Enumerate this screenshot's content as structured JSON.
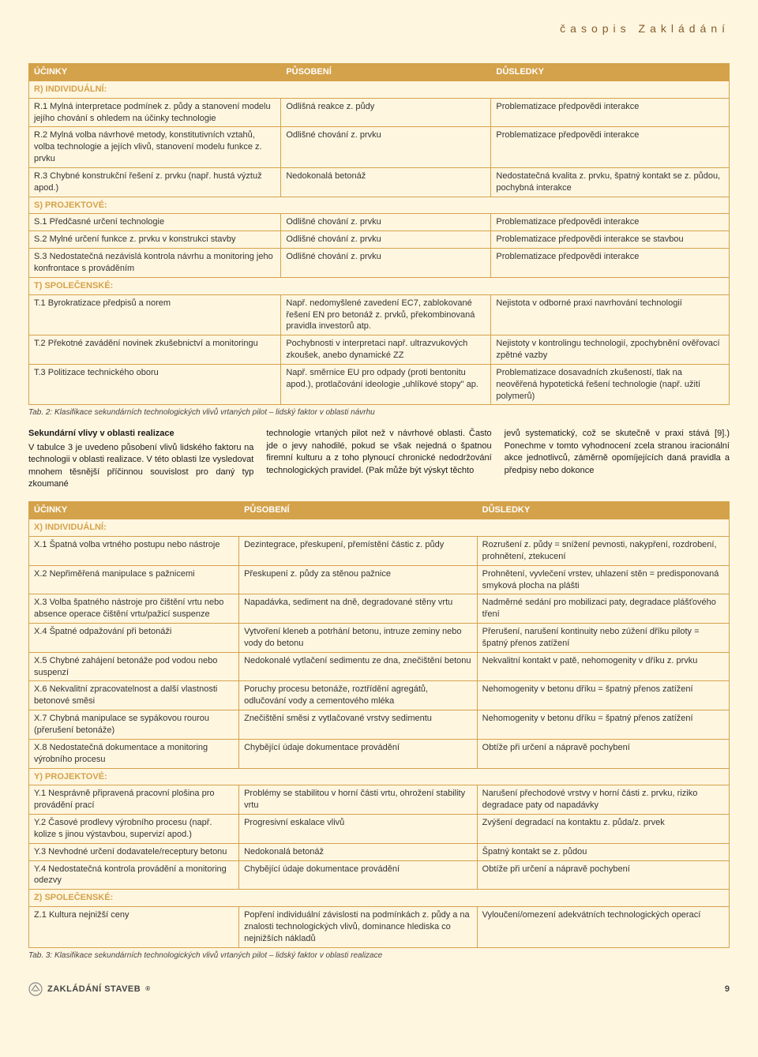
{
  "journal_title": "časopis Zakládání",
  "headers": {
    "col1": "ÚČINKY",
    "col2": "PŮSOBENÍ",
    "col3": "DŮSLEDKY"
  },
  "table1": {
    "sections": [
      {
        "label": "R) INDIVIDUÁLNÍ:",
        "rows": [
          {
            "a": "R.1 Mylná interpretace podmínek z. půdy a stanovení modelu jejího chování s ohledem na účinky technologie",
            "b": "Odlišná reakce z. půdy",
            "c": "Problematizace předpovědi interakce"
          },
          {
            "a": "R.2 Mylná volba návrhové metody, konstitutivních vztahů, volba technologie a jejích vlivů, stanovení modelu funkce z. prvku",
            "b": "Odlišné chování z. prvku",
            "c": "Problematizace předpovědi interakce"
          },
          {
            "a": "R.3 Chybné konstrukční řešení z. prvku (např. hustá výztuž apod.)",
            "b": "Nedokonalá betonáž",
            "c": "Nedostatečná kvalita z. prvku, špatný kontakt se z. půdou, pochybná interakce"
          }
        ]
      },
      {
        "label": "S) PROJEKTOVÉ:",
        "rows": [
          {
            "a": "S.1 Předčasné určení technologie",
            "b": "Odlišné chování z. prvku",
            "c": "Problematizace předpovědi interakce"
          },
          {
            "a": "S.2 Mylné určení funkce z. prvku v konstrukci stavby",
            "b": "Odlišné chování z. prvku",
            "c": "Problematizace předpovědi interakce se stavbou"
          },
          {
            "a": "S.3 Nedostatečná nezávislá kontrola návrhu a monitoring jeho konfrontace s prováděním",
            "b": "Odlišné chování z. prvku",
            "c": "Problematizace předpovědi interakce"
          }
        ]
      },
      {
        "label": "T) SPOLEČENSKÉ:",
        "rows": [
          {
            "a": "T.1 Byrokratizace předpisů a norem",
            "b": "Např. nedomyšlené zavedení EC7, zablokované řešení EN pro betonáž z. prvků, překombinovaná pravidla investorů atp.",
            "c": "Nejistota v odborné praxi navrhování technologií"
          },
          {
            "a": "T.2 Překotné zavádění novinek zkušebnictví a monitoringu",
            "b": "Pochybnosti v interpretaci např. ultrazvukových zkoušek, anebo dynamické ZZ",
            "c": "Nejistoty v kontrolingu technologií, zpochybnění ověřovací zpětné vazby"
          },
          {
            "a": "T.3 Politizace technického oboru",
            "b": "Např. směrnice EU pro odpady (proti bentonitu apod.), protlačování ideologie „uhlíkové stopy\" ap.",
            "c": "Problematizace dosavadních zkušeností, tlak na neověřená hypotetická řešení technologie (např. užití polymerů)"
          }
        ]
      }
    ],
    "caption": "Tab. 2: Klasifikace sekundárních technologických vlivů vrtaných pilot – lidský faktor v oblasti návrhu"
  },
  "prose": {
    "col1_head": "Sekundární vlivy v oblasti realizace",
    "col1": "V tabulce 3 je uvedeno působení vlivů lidského faktoru na technologii v oblasti realizace. V této oblasti lze vysledovat mnohem těsnější příčinnou souvislost pro daný typ zkoumané",
    "col2": "technologie vrtaných pilot než v návrhové oblasti. Často jde o jevy nahodilé, pokud se však nejedná o špatnou firemní kulturu a z toho plynoucí chronické nedodržování technologických pravidel. (Pak může být výskyt těchto",
    "col3": "jevů systematický, což se skutečně v praxi stává [9].)\nPonechme v tomto vyhodnocení zcela stranou iracionální akce jednotlivců, záměrně opomíjejících daná pravidla a předpisy nebo dokonce"
  },
  "table2": {
    "sections": [
      {
        "label": "X) INDIVIDUÁLNÍ:",
        "rows": [
          {
            "a": "X.1 Špatná volba vrtného postupu nebo nástroje",
            "b": "Dezintegrace, přeskupení, přemístění částic z. půdy",
            "c": "Rozrušení z. půdy = snížení pevnosti, nakypření, rozdrobení, prohnětení, ztekucení"
          },
          {
            "a": "X.2 Nepřiměřená manipulace s pažnicemi",
            "b": "Přeskupení z. půdy za stěnou pažnice",
            "c": "Prohnětení, vyvlečení vrstev, uhlazení stěn = predisponovaná smyková plocha na plášti"
          },
          {
            "a": "X.3 Volba špatného nástroje pro čištění vrtu nebo absence operace čištění vrtu/pažicí suspenze",
            "b": "Napadávka, sediment na dně, degradované stěny vrtu",
            "c": "Nadměrné sedání pro mobilizaci paty, degradace plášťového tření"
          },
          {
            "a": "X.4 Špatné odpažování při betonáži",
            "b": "Vytvoření kleneb a potrhání betonu, intruze zeminy nebo vody do betonu",
            "c": "Přerušení, narušení kontinuity nebo zúžení dříku piloty = špatný přenos zatížení"
          },
          {
            "a": "X.5 Chybné zahájení betonáže pod vodou nebo suspenzí",
            "b": "Nedokonalé vytlačení sedimentu ze dna, znečištění betonu",
            "c": "Nekvalitní kontakt v patě, nehomogenity v dříku z. prvku"
          },
          {
            "a": "X.6 Nekvalitní zpracovatelnost a další vlastnosti betonové směsi",
            "b": "Poruchy procesu betonáže, roztřídění agregátů, odlučování vody a cementového mléka",
            "c": "Nehomogenity v betonu dříku = špatný přenos zatížení"
          },
          {
            "a": "X.7 Chybná manipulace se sypákovou rourou (přerušení betonáže)",
            "b": "Znečištění směsi z vytlačované vrstvy sedimentu",
            "c": "Nehomogenity v betonu dříku = špatný přenos zatížení"
          },
          {
            "a": "X.8 Nedostatečná dokumentace a monitoring výrobního procesu",
            "b": "Chybějící údaje dokumentace provádění",
            "c": "Obtíže při určení a nápravě pochybení"
          }
        ]
      },
      {
        "label": "Y) PROJEKTOVÉ:",
        "rows": [
          {
            "a": "Y.1 Nesprávně připravená pracovní plošina pro provádění prací",
            "b": "Problémy se stabilitou v horní části vrtu, ohrožení stability vrtu",
            "c": "Narušení přechodové vrstvy v horní části z. prvku, riziko degradace paty od napadávky"
          },
          {
            "a": "Y.2 Časové prodlevy výrobního procesu (např. kolize s jinou výstavbou, supervizí apod.)",
            "b": "Progresivní eskalace vlivů",
            "c": "Zvýšení degradací na kontaktu z. půda/z. prvek"
          },
          {
            "a": "Y.3 Nevhodné určení dodavatele/receptury betonu",
            "b": "Nedokonalá betonáž",
            "c": "Špatný kontakt se z. půdou"
          },
          {
            "a": "Y.4 Nedostatečná kontrola provádění a monitoring odezvy",
            "b": "Chybějící údaje dokumentace provádění",
            "c": "Obtíže při určení a nápravě pochybení"
          }
        ]
      },
      {
        "label": "Z) SPOLEČENSKÉ:",
        "rows": [
          {
            "a": "Z.1 Kultura nejnižší ceny",
            "b": "Popření individuální závislosti na podmínkách z. půdy a na znalosti technologických vlivů, dominance hlediska co nejnižších nákladů",
            "c": "Vyloučení/omezení adekvátních technologických operací"
          }
        ]
      }
    ],
    "caption": "Tab. 3: Klasifikace sekundárních technologických vlivů vrtaných pilot – lidský faktor v oblasti realizace"
  },
  "footer": {
    "brand": "ZAKLÁDÁNÍ STAVEB",
    "page": "9"
  },
  "colors": {
    "page_bg": "#fff6e0",
    "accent": "#d4a24a",
    "journal_text": "#845d2a"
  }
}
